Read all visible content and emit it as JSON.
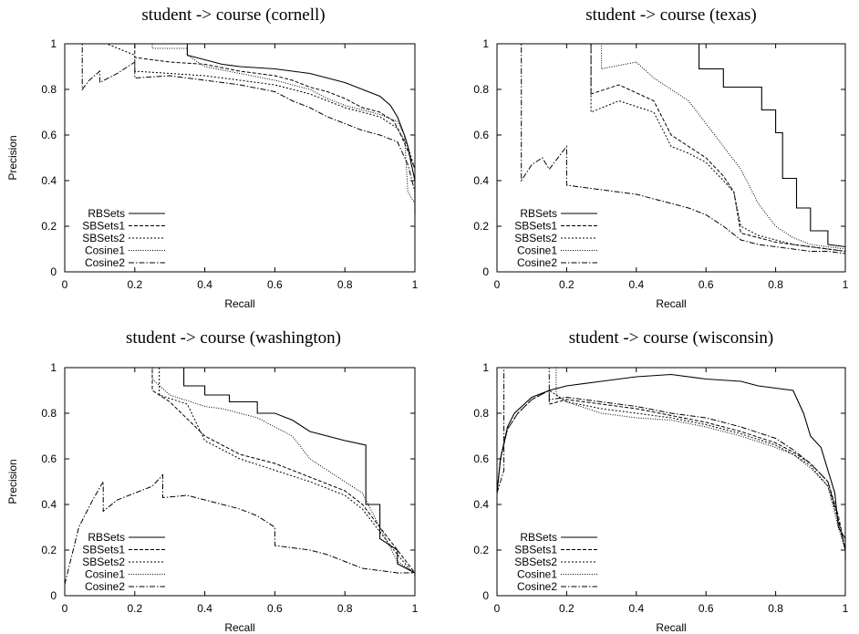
{
  "chart_data": [
    {
      "type": "line",
      "title": "student -> course (cornell)",
      "xlabel": "Recall",
      "ylabel": "Precision",
      "xlim": [
        0,
        1
      ],
      "ylim": [
        0,
        1
      ],
      "xticks": [
        "0",
        "0.2",
        "0.4",
        "0.6",
        "0.8",
        "1"
      ],
      "yticks": [
        "0",
        "0.2",
        "0.4",
        "0.6",
        "0.8",
        "1"
      ],
      "grid": false,
      "legend_position": "bottom-left",
      "series": [
        {
          "name": "RBSets",
          "style": "solid",
          "x": [
            0,
            0.35,
            0.35,
            0.45,
            0.5,
            0.6,
            0.65,
            0.7,
            0.75,
            0.8,
            0.85,
            0.9,
            0.93,
            0.95,
            0.97,
            0.98,
            0.99,
            1,
            1
          ],
          "y": [
            1,
            1,
            0.95,
            0.91,
            0.9,
            0.89,
            0.88,
            0.87,
            0.85,
            0.83,
            0.8,
            0.77,
            0.73,
            0.68,
            0.6,
            0.55,
            0.47,
            0.4,
            0.25
          ]
        },
        {
          "name": "SBSets1",
          "style": "dashed",
          "x": [
            0,
            0.2,
            0.2,
            0.3,
            0.4,
            0.5,
            0.6,
            0.65,
            0.7,
            0.75,
            0.8,
            0.85,
            0.9,
            0.94,
            0.96,
            0.98,
            1,
            1
          ],
          "y": [
            1,
            1,
            0.94,
            0.92,
            0.91,
            0.88,
            0.86,
            0.84,
            0.81,
            0.79,
            0.76,
            0.72,
            0.7,
            0.66,
            0.6,
            0.53,
            0.45,
            0.28
          ]
        },
        {
          "name": "SBSets2",
          "style": "dotted",
          "x": [
            0,
            0.12,
            0.2,
            0.2,
            0.3,
            0.4,
            0.5,
            0.6,
            0.7,
            0.75,
            0.8,
            0.85,
            0.9,
            0.95,
            0.98,
            1,
            1
          ],
          "y": [
            1,
            1,
            0.95,
            0.88,
            0.87,
            0.86,
            0.84,
            0.82,
            0.78,
            0.75,
            0.72,
            0.7,
            0.68,
            0.63,
            0.55,
            0.45,
            0.3
          ]
        },
        {
          "name": "Cosine1",
          "style": "fine-dotted",
          "x": [
            0,
            0.25,
            0.25,
            0.35,
            0.35,
            0.4,
            0.5,
            0.6,
            0.7,
            0.75,
            0.8,
            0.85,
            0.9,
            0.95,
            0.97,
            0.98,
            1
          ],
          "y": [
            1,
            1,
            0.98,
            0.98,
            0.95,
            0.9,
            0.87,
            0.84,
            0.8,
            0.76,
            0.73,
            0.71,
            0.69,
            0.66,
            0.6,
            0.35,
            0.3
          ]
        },
        {
          "name": "Cosine2",
          "style": "dash-dot",
          "x": [
            0,
            0.05,
            0.05,
            0.07,
            0.1,
            0.1,
            0.15,
            0.18,
            0.2,
            0.2,
            0.3,
            0.4,
            0.5,
            0.6,
            0.65,
            0.7,
            0.75,
            0.8,
            0.85,
            0.9,
            0.95,
            0.98,
            1
          ],
          "y": [
            1,
            1,
            0.8,
            0.84,
            0.88,
            0.83,
            0.87,
            0.9,
            0.92,
            0.85,
            0.86,
            0.84,
            0.82,
            0.79,
            0.75,
            0.72,
            0.68,
            0.65,
            0.62,
            0.6,
            0.57,
            0.47,
            0.35
          ]
        }
      ]
    },
    {
      "type": "line",
      "title": "student -> course (texas)",
      "xlabel": "Recall",
      "ylabel": "",
      "xlim": [
        0,
        1
      ],
      "ylim": [
        0,
        1
      ],
      "xticks": [
        "0",
        "0.2",
        "0.4",
        "0.6",
        "0.8",
        "1"
      ],
      "yticks": [
        "0",
        "0.2",
        "0.4",
        "0.6",
        "0.8",
        "1"
      ],
      "grid": false,
      "legend_position": "bottom-left",
      "series": [
        {
          "name": "RBSets",
          "style": "solid",
          "x": [
            0.02,
            0.58,
            0.58,
            0.65,
            0.65,
            0.76,
            0.76,
            0.8,
            0.8,
            0.82,
            0.82,
            0.86,
            0.86,
            0.9,
            0.9,
            0.95,
            0.95,
            1
          ],
          "y": [
            1,
            1,
            0.89,
            0.89,
            0.81,
            0.81,
            0.71,
            0.71,
            0.61,
            0.61,
            0.41,
            0.41,
            0.28,
            0.28,
            0.18,
            0.18,
            0.12,
            0.11
          ]
        },
        {
          "name": "SBSets1",
          "style": "dashed",
          "x": [
            0.02,
            0.27,
            0.27,
            0.35,
            0.45,
            0.5,
            0.55,
            0.6,
            0.65,
            0.68,
            0.7,
            0.75,
            0.8,
            0.85,
            0.9,
            0.95,
            1
          ],
          "y": [
            1,
            1,
            0.78,
            0.82,
            0.75,
            0.6,
            0.55,
            0.5,
            0.42,
            0.35,
            0.17,
            0.15,
            0.13,
            0.12,
            0.11,
            0.1,
            0.09
          ]
        },
        {
          "name": "SBSets2",
          "style": "dotted",
          "x": [
            0.02,
            0.27,
            0.27,
            0.35,
            0.45,
            0.5,
            0.55,
            0.6,
            0.65,
            0.68,
            0.7,
            0.75,
            0.8,
            0.85,
            0.9,
            0.95,
            1
          ],
          "y": [
            1,
            1,
            0.7,
            0.75,
            0.7,
            0.55,
            0.52,
            0.48,
            0.4,
            0.35,
            0.2,
            0.16,
            0.14,
            0.12,
            0.11,
            0.1,
            0.09
          ]
        },
        {
          "name": "Cosine1",
          "style": "fine-dotted",
          "x": [
            0.02,
            0.3,
            0.3,
            0.4,
            0.45,
            0.5,
            0.55,
            0.6,
            0.65,
            0.7,
            0.75,
            0.8,
            0.85,
            0.9,
            0.95,
            1
          ],
          "y": [
            1,
            1,
            0.89,
            0.92,
            0.85,
            0.8,
            0.75,
            0.65,
            0.55,
            0.45,
            0.3,
            0.2,
            0.15,
            0.12,
            0.11,
            0.1
          ]
        },
        {
          "name": "Cosine2",
          "style": "dash-dot",
          "x": [
            0.02,
            0.07,
            0.07,
            0.1,
            0.13,
            0.15,
            0.2,
            0.2,
            0.3,
            0.4,
            0.5,
            0.55,
            0.6,
            0.65,
            0.7,
            0.75,
            0.8,
            0.85,
            0.9,
            0.95,
            1
          ],
          "y": [
            1,
            1,
            0.4,
            0.47,
            0.5,
            0.45,
            0.55,
            0.38,
            0.36,
            0.34,
            0.3,
            0.28,
            0.25,
            0.2,
            0.14,
            0.12,
            0.11,
            0.1,
            0.09,
            0.09,
            0.08
          ]
        }
      ]
    },
    {
      "type": "line",
      "title": "student -> course (washington)",
      "xlabel": "Recall",
      "ylabel": "Precision",
      "xlim": [
        0,
        1
      ],
      "ylim": [
        0,
        1
      ],
      "xticks": [
        "0",
        "0.2",
        "0.4",
        "0.6",
        "0.8",
        "1"
      ],
      "yticks": [
        "0",
        "0.2",
        "0.4",
        "0.6",
        "0.8",
        "1"
      ],
      "grid": false,
      "legend_position": "bottom-left",
      "series": [
        {
          "name": "RBSets",
          "style": "solid",
          "x": [
            0.02,
            0.34,
            0.34,
            0.4,
            0.4,
            0.47,
            0.47,
            0.55,
            0.55,
            0.6,
            0.65,
            0.7,
            0.8,
            0.86,
            0.86,
            0.9,
            0.9,
            0.95,
            0.95,
            1
          ],
          "y": [
            1,
            1,
            0.92,
            0.92,
            0.88,
            0.88,
            0.85,
            0.85,
            0.8,
            0.8,
            0.77,
            0.72,
            0.68,
            0.66,
            0.4,
            0.4,
            0.25,
            0.2,
            0.14,
            0.1
          ]
        },
        {
          "name": "SBSets1",
          "style": "dashed",
          "x": [
            0.02,
            0.25,
            0.25,
            0.3,
            0.4,
            0.45,
            0.5,
            0.6,
            0.7,
            0.8,
            0.85,
            0.9,
            0.95,
            1
          ],
          "y": [
            1,
            1,
            0.9,
            0.85,
            0.7,
            0.66,
            0.62,
            0.58,
            0.52,
            0.46,
            0.4,
            0.3,
            0.2,
            0.1
          ]
        },
        {
          "name": "SBSets2",
          "style": "dotted",
          "x": [
            0.02,
            0.27,
            0.27,
            0.35,
            0.4,
            0.45,
            0.5,
            0.6,
            0.7,
            0.8,
            0.85,
            0.9,
            0.95,
            1
          ],
          "y": [
            1,
            1,
            0.88,
            0.84,
            0.68,
            0.64,
            0.6,
            0.55,
            0.5,
            0.44,
            0.38,
            0.28,
            0.18,
            0.09
          ]
        },
        {
          "name": "Cosine1",
          "style": "fine-dotted",
          "x": [
            0.02,
            0.25,
            0.25,
            0.3,
            0.4,
            0.45,
            0.55,
            0.65,
            0.7,
            0.8,
            0.85,
            0.9,
            0.95,
            1
          ],
          "y": [
            1,
            1,
            0.95,
            0.88,
            0.83,
            0.82,
            0.78,
            0.7,
            0.6,
            0.5,
            0.45,
            0.3,
            0.15,
            0.1
          ]
        },
        {
          "name": "Cosine2",
          "style": "dash-dot",
          "x": [
            0,
            0.04,
            0.08,
            0.11,
            0.11,
            0.15,
            0.2,
            0.25,
            0.28,
            0.28,
            0.35,
            0.4,
            0.45,
            0.5,
            0.55,
            0.6,
            0.6,
            0.7,
            0.75,
            0.8,
            0.85,
            0.9,
            0.95,
            1
          ],
          "y": [
            0.05,
            0.3,
            0.42,
            0.5,
            0.37,
            0.42,
            0.45,
            0.48,
            0.53,
            0.43,
            0.44,
            0.42,
            0.4,
            0.38,
            0.35,
            0.3,
            0.22,
            0.2,
            0.18,
            0.15,
            0.12,
            0.11,
            0.1,
            0.1
          ]
        }
      ]
    },
    {
      "type": "line",
      "title": "student -> course (wisconsin)",
      "xlabel": "Recall",
      "ylabel": "",
      "xlim": [
        0,
        1
      ],
      "ylim": [
        0,
        1
      ],
      "xticks": [
        "0",
        "0.2",
        "0.4",
        "0.6",
        "0.8",
        "1"
      ],
      "yticks": [
        "0",
        "0.2",
        "0.4",
        "0.6",
        "0.8",
        "1"
      ],
      "grid": false,
      "legend_position": "bottom-left",
      "series": [
        {
          "name": "RBSets",
          "style": "solid",
          "x": [
            0,
            0.01,
            0.03,
            0.05,
            0.1,
            0.15,
            0.2,
            0.3,
            0.4,
            0.5,
            0.6,
            0.7,
            0.75,
            0.85,
            0.88,
            0.9,
            0.93,
            0.95,
            0.97,
            0.98,
            1,
            1
          ],
          "y": [
            0.45,
            0.6,
            0.74,
            0.8,
            0.87,
            0.9,
            0.92,
            0.94,
            0.96,
            0.97,
            0.95,
            0.94,
            0.92,
            0.9,
            0.8,
            0.7,
            0.65,
            0.55,
            0.45,
            0.3,
            0.25,
            0.16
          ]
        },
        {
          "name": "SBSets1",
          "style": "dashed",
          "x": [
            0,
            0.01,
            0.03,
            0.06,
            0.1,
            0.15,
            0.15,
            0.2,
            0.3,
            0.4,
            0.5,
            0.6,
            0.7,
            0.8,
            0.85,
            0.9,
            0.95,
            0.98,
            1
          ],
          "y": [
            0.45,
            0.6,
            0.73,
            0.8,
            0.86,
            0.9,
            0.84,
            0.86,
            0.84,
            0.82,
            0.79,
            0.76,
            0.72,
            0.67,
            0.63,
            0.58,
            0.5,
            0.35,
            0.2
          ]
        },
        {
          "name": "SBSets2",
          "style": "dotted",
          "x": [
            0,
            0.01,
            0.03,
            0.06,
            0.1,
            0.15,
            0.2,
            0.3,
            0.4,
            0.5,
            0.6,
            0.7,
            0.8,
            0.85,
            0.9,
            0.95,
            0.98,
            1
          ],
          "y": [
            0.45,
            0.6,
            0.73,
            0.8,
            0.86,
            0.9,
            0.85,
            0.82,
            0.8,
            0.78,
            0.75,
            0.71,
            0.66,
            0.62,
            0.57,
            0.48,
            0.33,
            0.2
          ]
        },
        {
          "name": "Cosine1",
          "style": "fine-dotted",
          "x": [
            0.02,
            0.17,
            0.17,
            0.2,
            0.3,
            0.4,
            0.5,
            0.6,
            0.7,
            0.8,
            0.85,
            0.9,
            0.95,
            0.98,
            1
          ],
          "y": [
            1,
            1,
            0.88,
            0.85,
            0.8,
            0.78,
            0.77,
            0.74,
            0.7,
            0.65,
            0.62,
            0.56,
            0.48,
            0.3,
            0.2
          ]
        },
        {
          "name": "Cosine2",
          "style": "dash-dot",
          "x": [
            0,
            0.01,
            0.02,
            0.02,
            0.15,
            0.15,
            0.2,
            0.3,
            0.4,
            0.5,
            0.6,
            0.7,
            0.8,
            0.85,
            0.9,
            0.95,
            0.98,
            1
          ],
          "y": [
            0.45,
            0.5,
            0.55,
            1,
            1,
            0.86,
            0.87,
            0.85,
            0.83,
            0.8,
            0.78,
            0.74,
            0.69,
            0.64,
            0.58,
            0.5,
            0.33,
            0.2
          ]
        }
      ]
    }
  ]
}
